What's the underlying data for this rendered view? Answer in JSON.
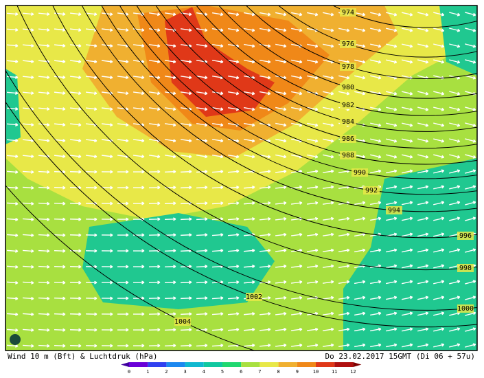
{
  "isobars": [
    {
      "label": "974"
    },
    {
      "label": "976"
    },
    {
      "label": "978"
    },
    {
      "label": "980"
    },
    {
      "label": "982"
    },
    {
      "label": "984"
    },
    {
      "label": "986"
    },
    {
      "label": "988"
    },
    {
      "label": "990"
    },
    {
      "label": "992"
    },
    {
      "label": "994"
    },
    {
      "label": "996"
    },
    {
      "label": "998"
    },
    {
      "label": "1000"
    },
    {
      "label": "1002"
    },
    {
      "label": "1004"
    }
  ],
  "footer": {
    "left": "Wind 10 m (Bft) & Luchtdruk (hPa)",
    "right": "Do 23.02.2017 15GMT (Di 06 + 57u)"
  },
  "legend": {
    "labels": [
      "0",
      "1",
      "2",
      "3",
      "4",
      "5",
      "6",
      "7",
      "8",
      "9",
      "10",
      "11",
      "12"
    ]
  }
}
